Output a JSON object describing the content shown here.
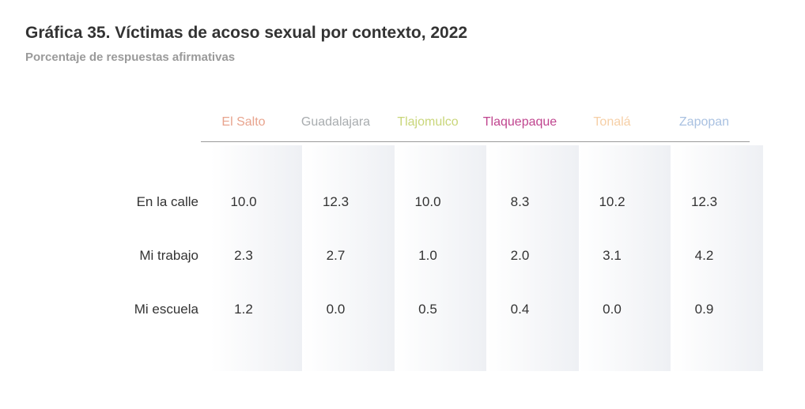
{
  "header": {
    "title": "Gráfica 35. Víctimas de acoso sexual por contexto, 2022",
    "subtitle": "Porcentaje de respuestas afirmativas"
  },
  "chart_data": {
    "type": "table",
    "title": "Gráfica 35. Víctimas de acoso sexual por contexto, 2022",
    "subtitle": "Porcentaje de respuestas afirmativas",
    "columns": [
      {
        "label": "El Salto",
        "color": "#e8a48e"
      },
      {
        "label": "Guadalajara",
        "color": "#a8acaf"
      },
      {
        "label": "Tlajomulco",
        "color": "#c9d67a"
      },
      {
        "label": "Tlaquepaque",
        "color": "#c0458f"
      },
      {
        "label": "Tonalá",
        "color": "#f6cfa6"
      },
      {
        "label": "Zapopan",
        "color": "#a9c1e1"
      }
    ],
    "rows": [
      {
        "label": "En la calle",
        "values": [
          "10.0",
          "12.3",
          "10.0",
          "8.3",
          "10.2",
          "12.3"
        ]
      },
      {
        "label": "Mi trabajo",
        "values": [
          "2.3",
          "2.7",
          "1.0",
          "2.0",
          "3.1",
          "4.2"
        ]
      },
      {
        "label": "Mi escuela",
        "values": [
          "1.2",
          "0.0",
          "0.5",
          "0.4",
          "0.0",
          "0.9"
        ]
      }
    ]
  }
}
